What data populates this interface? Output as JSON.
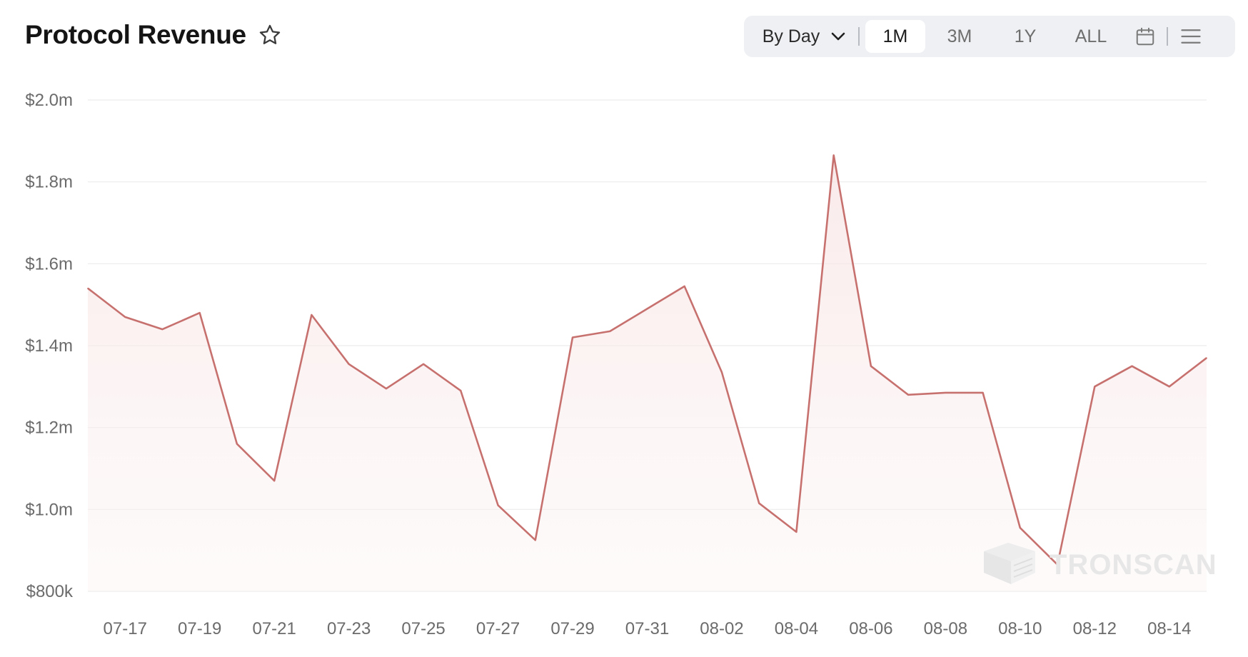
{
  "header": {
    "title": "Protocol Revenue",
    "favorite_icon": "star-outline-icon"
  },
  "toolbar": {
    "granularity_label": "By Day",
    "ranges": [
      "1M",
      "3M",
      "1Y",
      "ALL"
    ],
    "active_range": "1M",
    "calendar_icon": "calendar-icon",
    "menu_icon": "menu-icon"
  },
  "watermark": "TRONSCAN",
  "chart_data": {
    "type": "area",
    "title": "",
    "xlabel": "",
    "ylabel": "",
    "ylim": [
      800000,
      2000000
    ],
    "yticks": [
      "$800k",
      "$1.0m",
      "$1.2m",
      "$1.4m",
      "$1.6m",
      "$1.8m",
      "$2.0m"
    ],
    "xticks": [
      "07-17",
      "07-19",
      "07-21",
      "07-23",
      "07-25",
      "07-27",
      "07-29",
      "07-31",
      "08-02",
      "08-04",
      "08-06",
      "08-08",
      "08-10",
      "08-12",
      "08-14"
    ],
    "grid": true,
    "line_color": "#c7716f",
    "fill_color": "#fbeeee",
    "x": [
      "07-16",
      "07-17",
      "07-18",
      "07-19",
      "07-20",
      "07-21",
      "07-22",
      "07-23",
      "07-24",
      "07-25",
      "07-26",
      "07-27",
      "07-28",
      "07-29",
      "07-30",
      "07-31",
      "08-01",
      "08-02",
      "08-03",
      "08-04",
      "08-05",
      "08-06",
      "08-07",
      "08-08",
      "08-09",
      "08-10",
      "08-11",
      "08-12",
      "08-13",
      "08-14",
      "08-15"
    ],
    "values": [
      1540000,
      1470000,
      1440000,
      1480000,
      1160000,
      1070000,
      1475000,
      1355000,
      1295000,
      1355000,
      1290000,
      1010000,
      925000,
      1420000,
      1435000,
      1490000,
      1545000,
      1335000,
      1015000,
      945000,
      1865000,
      1350000,
      1280000,
      1285000,
      1285000,
      955000,
      865000,
      1300000,
      1350000,
      1300000,
      1370000
    ]
  }
}
